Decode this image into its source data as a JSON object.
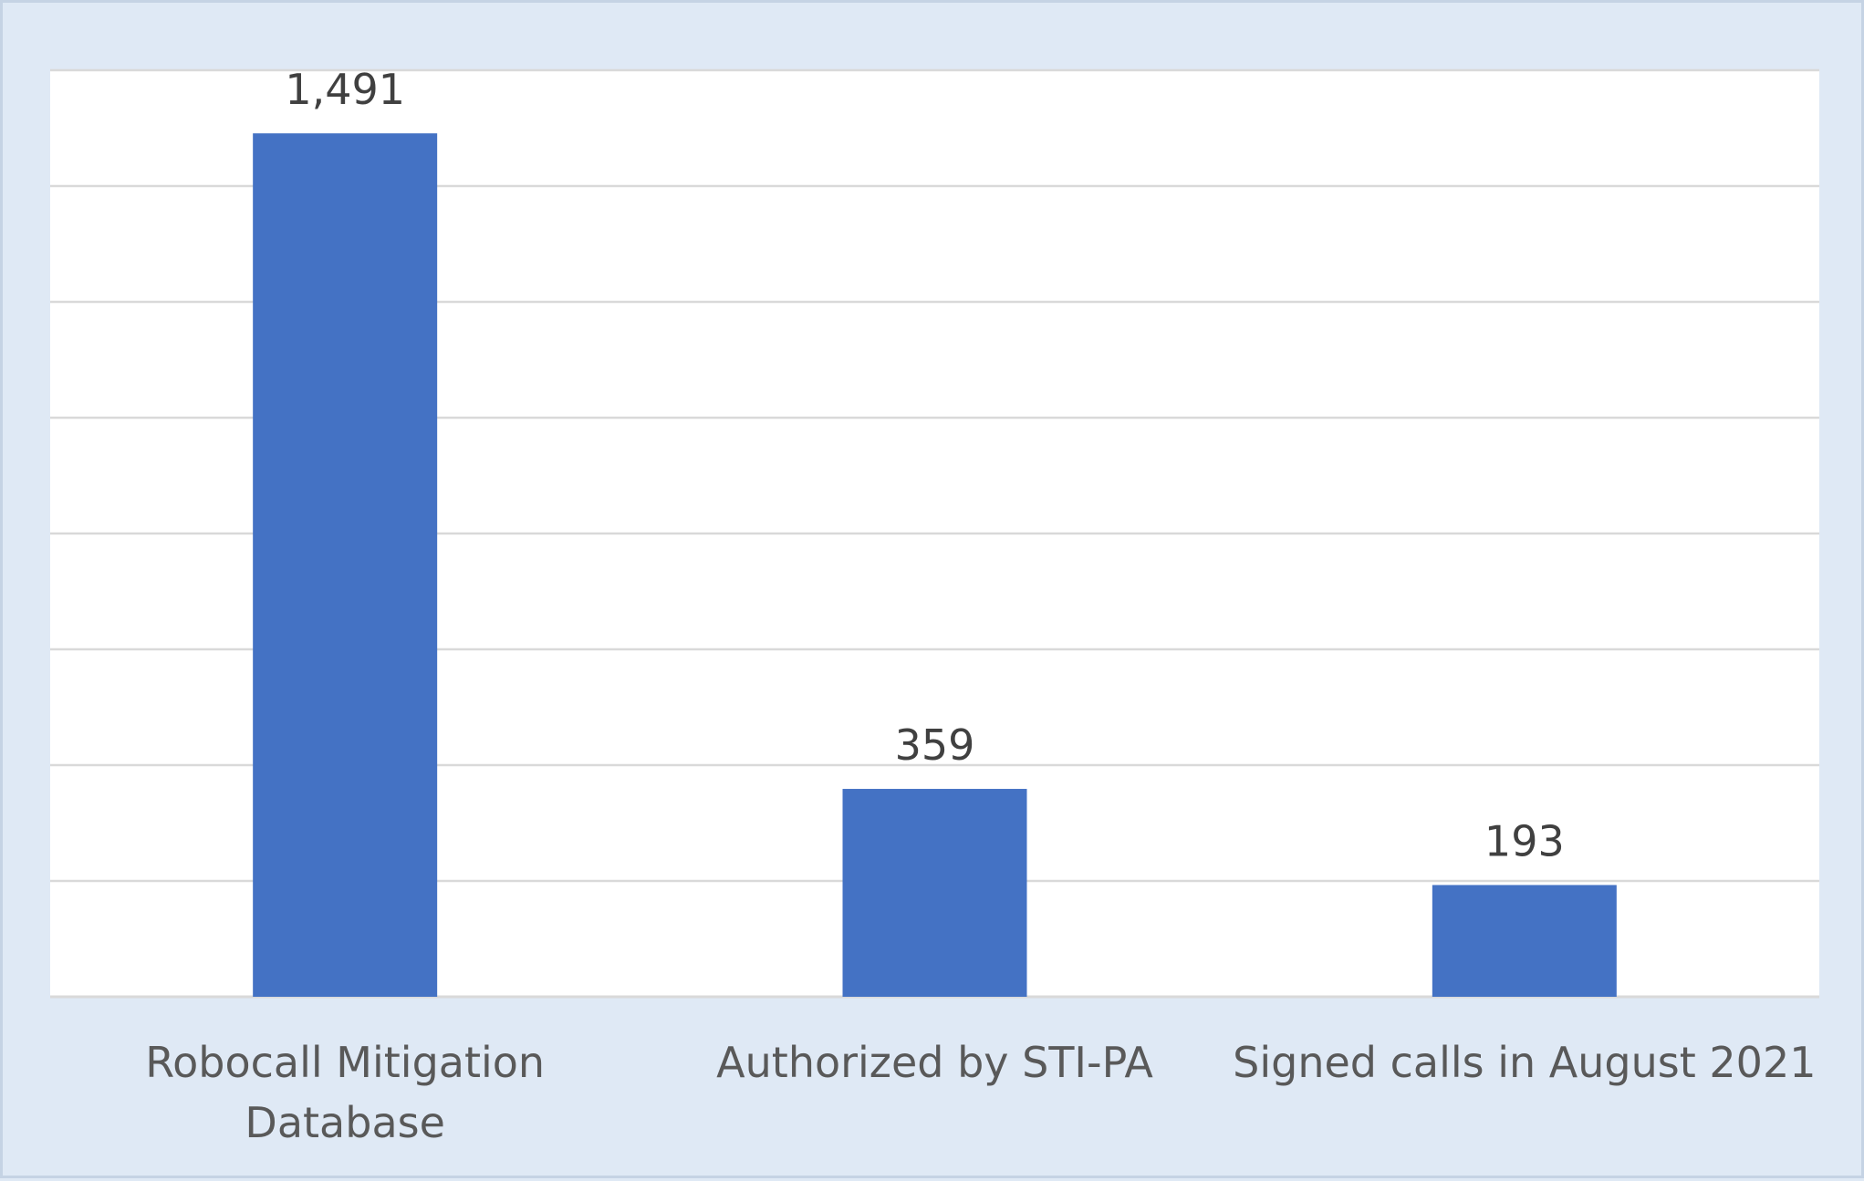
{
  "chart_data": {
    "type": "bar",
    "categories": [
      [
        "Robocall Mitigation",
        "Database"
      ],
      [
        "Authorized by STI-PA"
      ],
      [
        "Signed calls in August 2021"
      ]
    ],
    "values": [
      1491,
      359,
      193
    ],
    "data_labels": [
      "1,491",
      "359",
      "193"
    ],
    "title": "",
    "xlabel": "",
    "ylabel": "",
    "ylim": [
      0,
      1600
    ],
    "y_gridline_step": 200,
    "grid": true,
    "legend": "none",
    "bar_color": "#4472c4",
    "plot_background": "#ffffff",
    "frame_background": "#dfe9f5",
    "gridline_color": "#d9d9d9"
  }
}
